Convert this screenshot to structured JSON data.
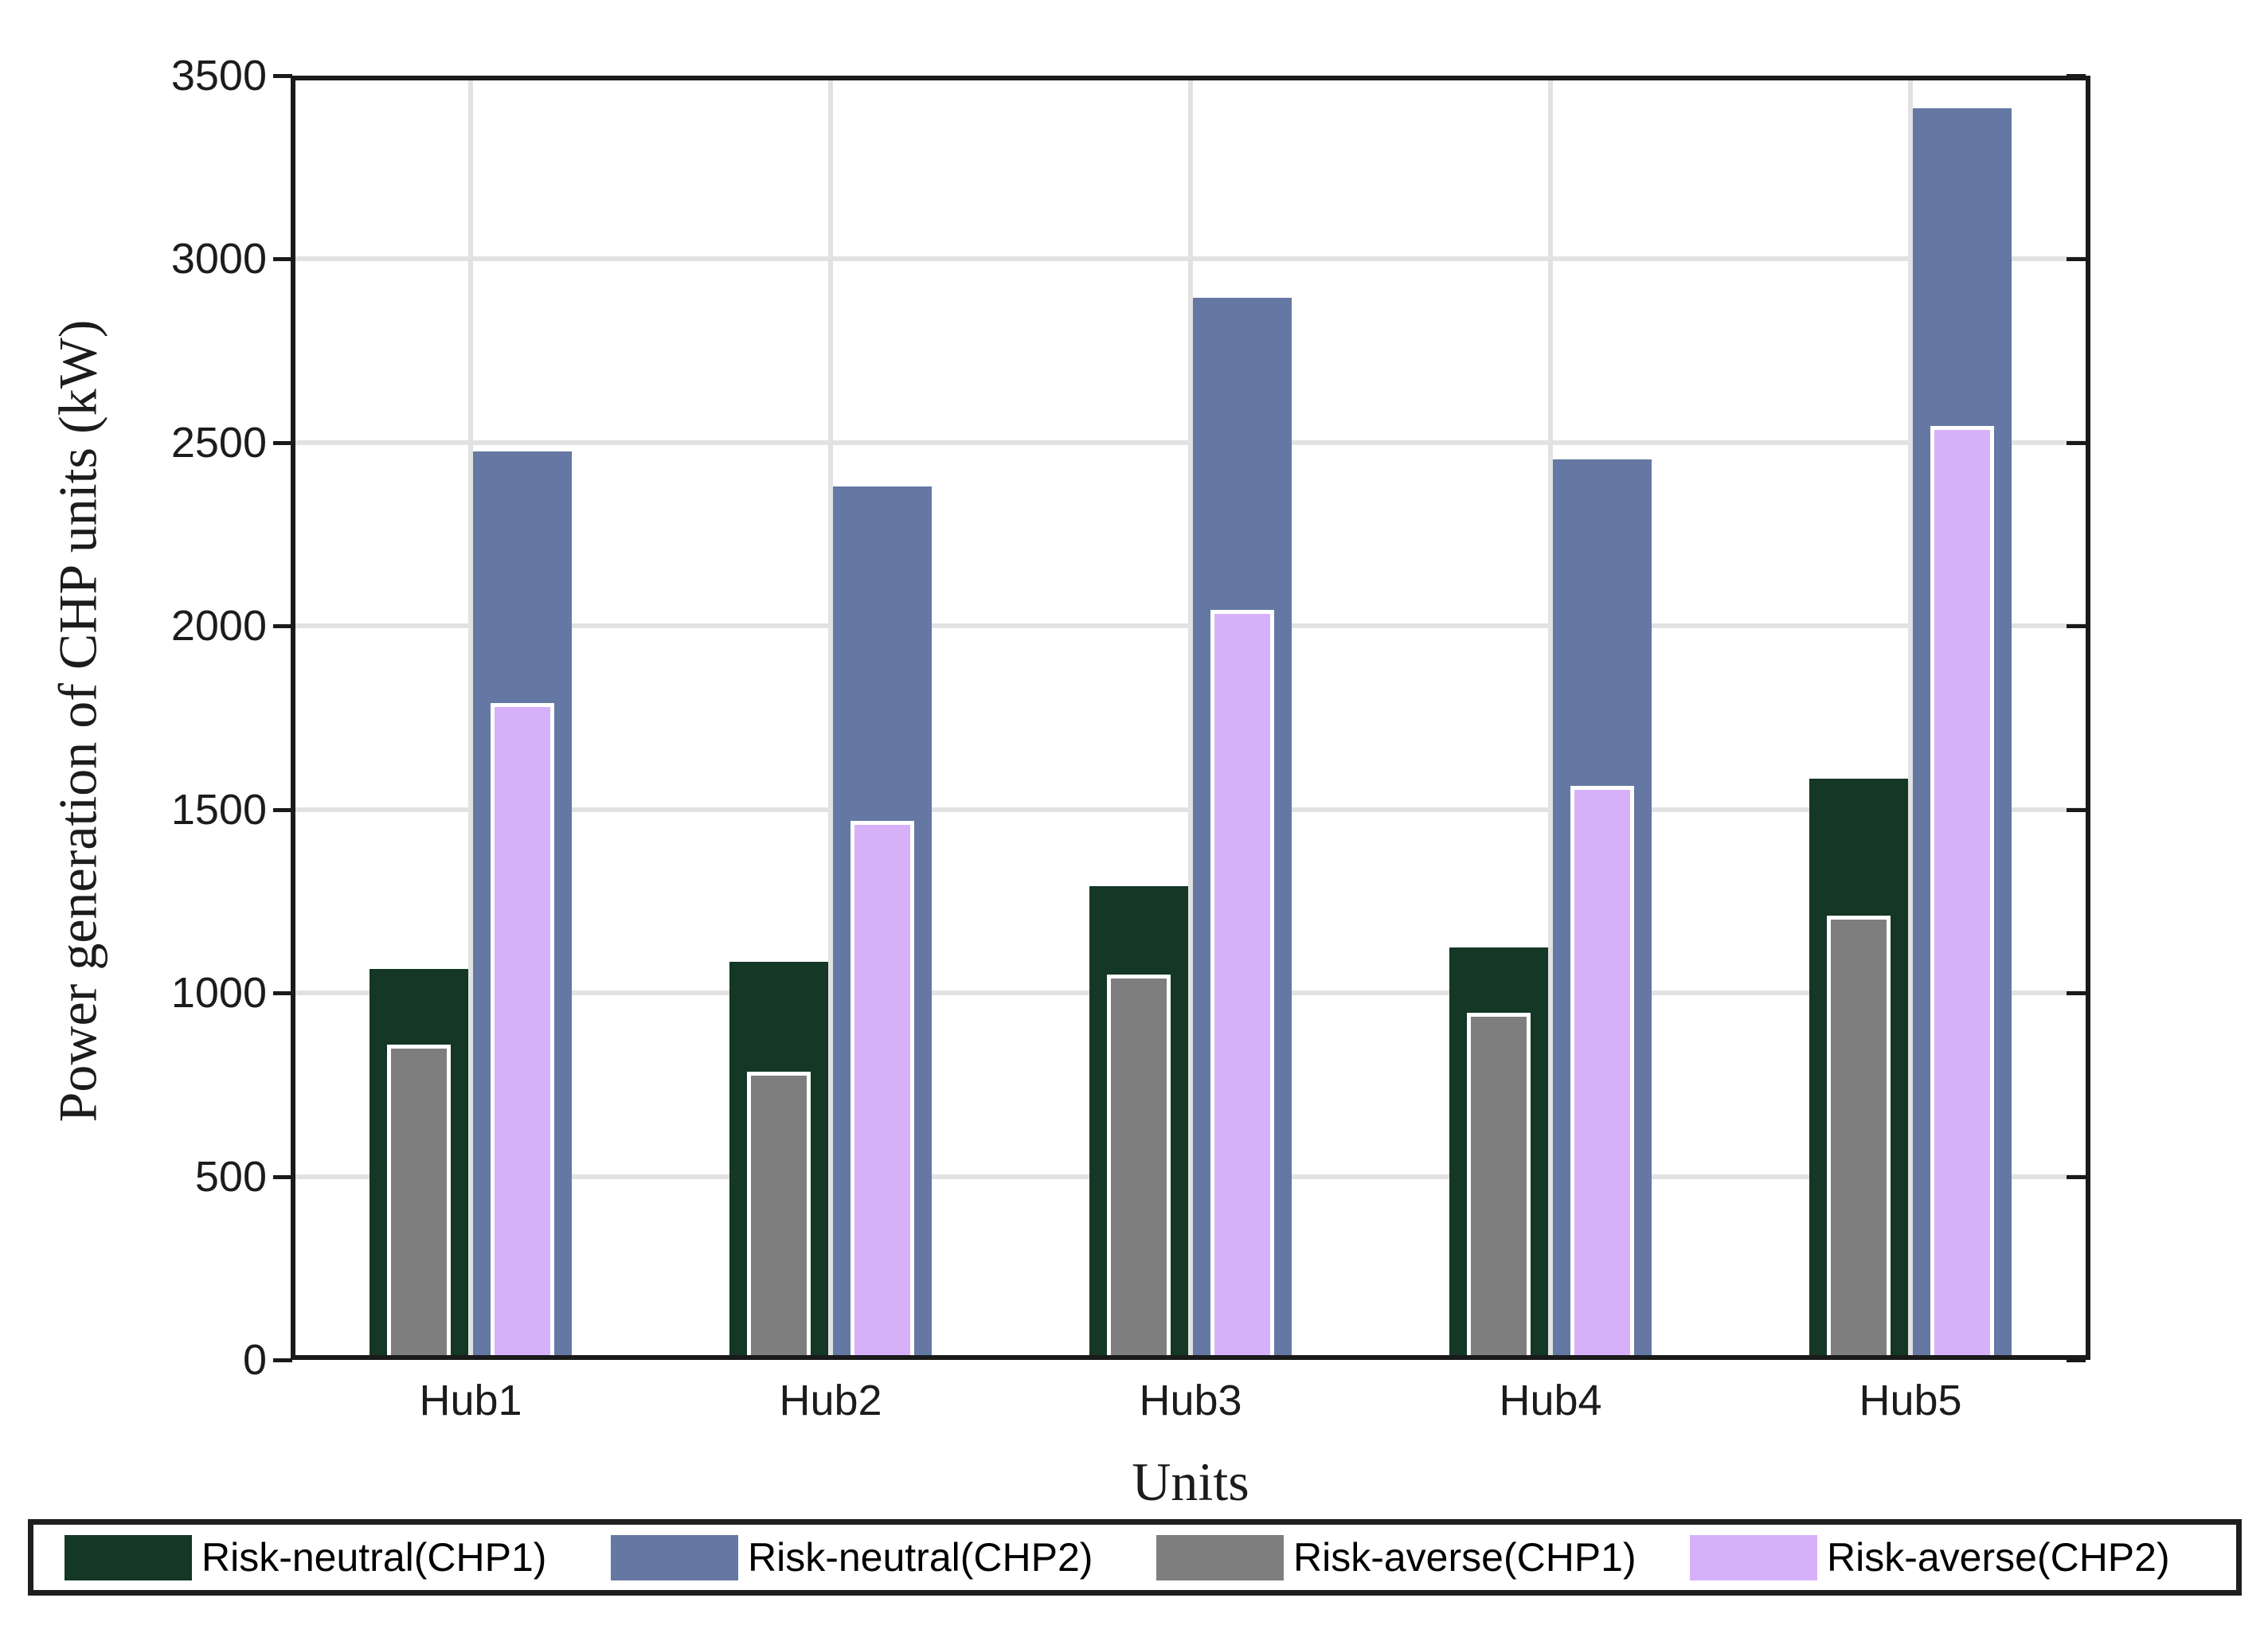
{
  "figure": {
    "x_axis_title": "Units",
    "y_axis_title": "Power generation of CHP units (kW)"
  },
  "chart_data": {
    "type": "bar",
    "title": "",
    "xlabel": "Units",
    "ylabel": "Power generation of CHP units (kW)",
    "categories": [
      "Hub1",
      "Hub2",
      "Hub3",
      "Hub4",
      "Hub5"
    ],
    "series": [
      {
        "name": "Risk-neutral(CHP1)",
        "color": "#143726",
        "style": "wide",
        "values": [
          1065,
          1085,
          1290,
          1125,
          1585
        ]
      },
      {
        "name": "Risk-neutral(CHP2)",
        "color": "#6478a3",
        "style": "wide",
        "values": [
          2475,
          2380,
          2895,
          2455,
          3410
        ]
      },
      {
        "name": "Risk-averse(CHP1)",
        "color": "#7e7e7e",
        "style": "narrow",
        "values": [
          860,
          785,
          1050,
          945,
          1210
        ]
      },
      {
        "name": "Risk-averse(CHP2)",
        "color": "#d6b1fa",
        "style": "narrow",
        "values": [
          1790,
          1470,
          2045,
          1565,
          2545
        ]
      }
    ],
    "ylim": [
      0,
      3500
    ],
    "yticks": [
      0,
      500,
      1000,
      1500,
      2000,
      2500,
      3000,
      3500
    ],
    "grid": true,
    "gridline_color": "#e2e2e2",
    "frame_color": "#1a1a1a",
    "legend_position": "bottom"
  }
}
